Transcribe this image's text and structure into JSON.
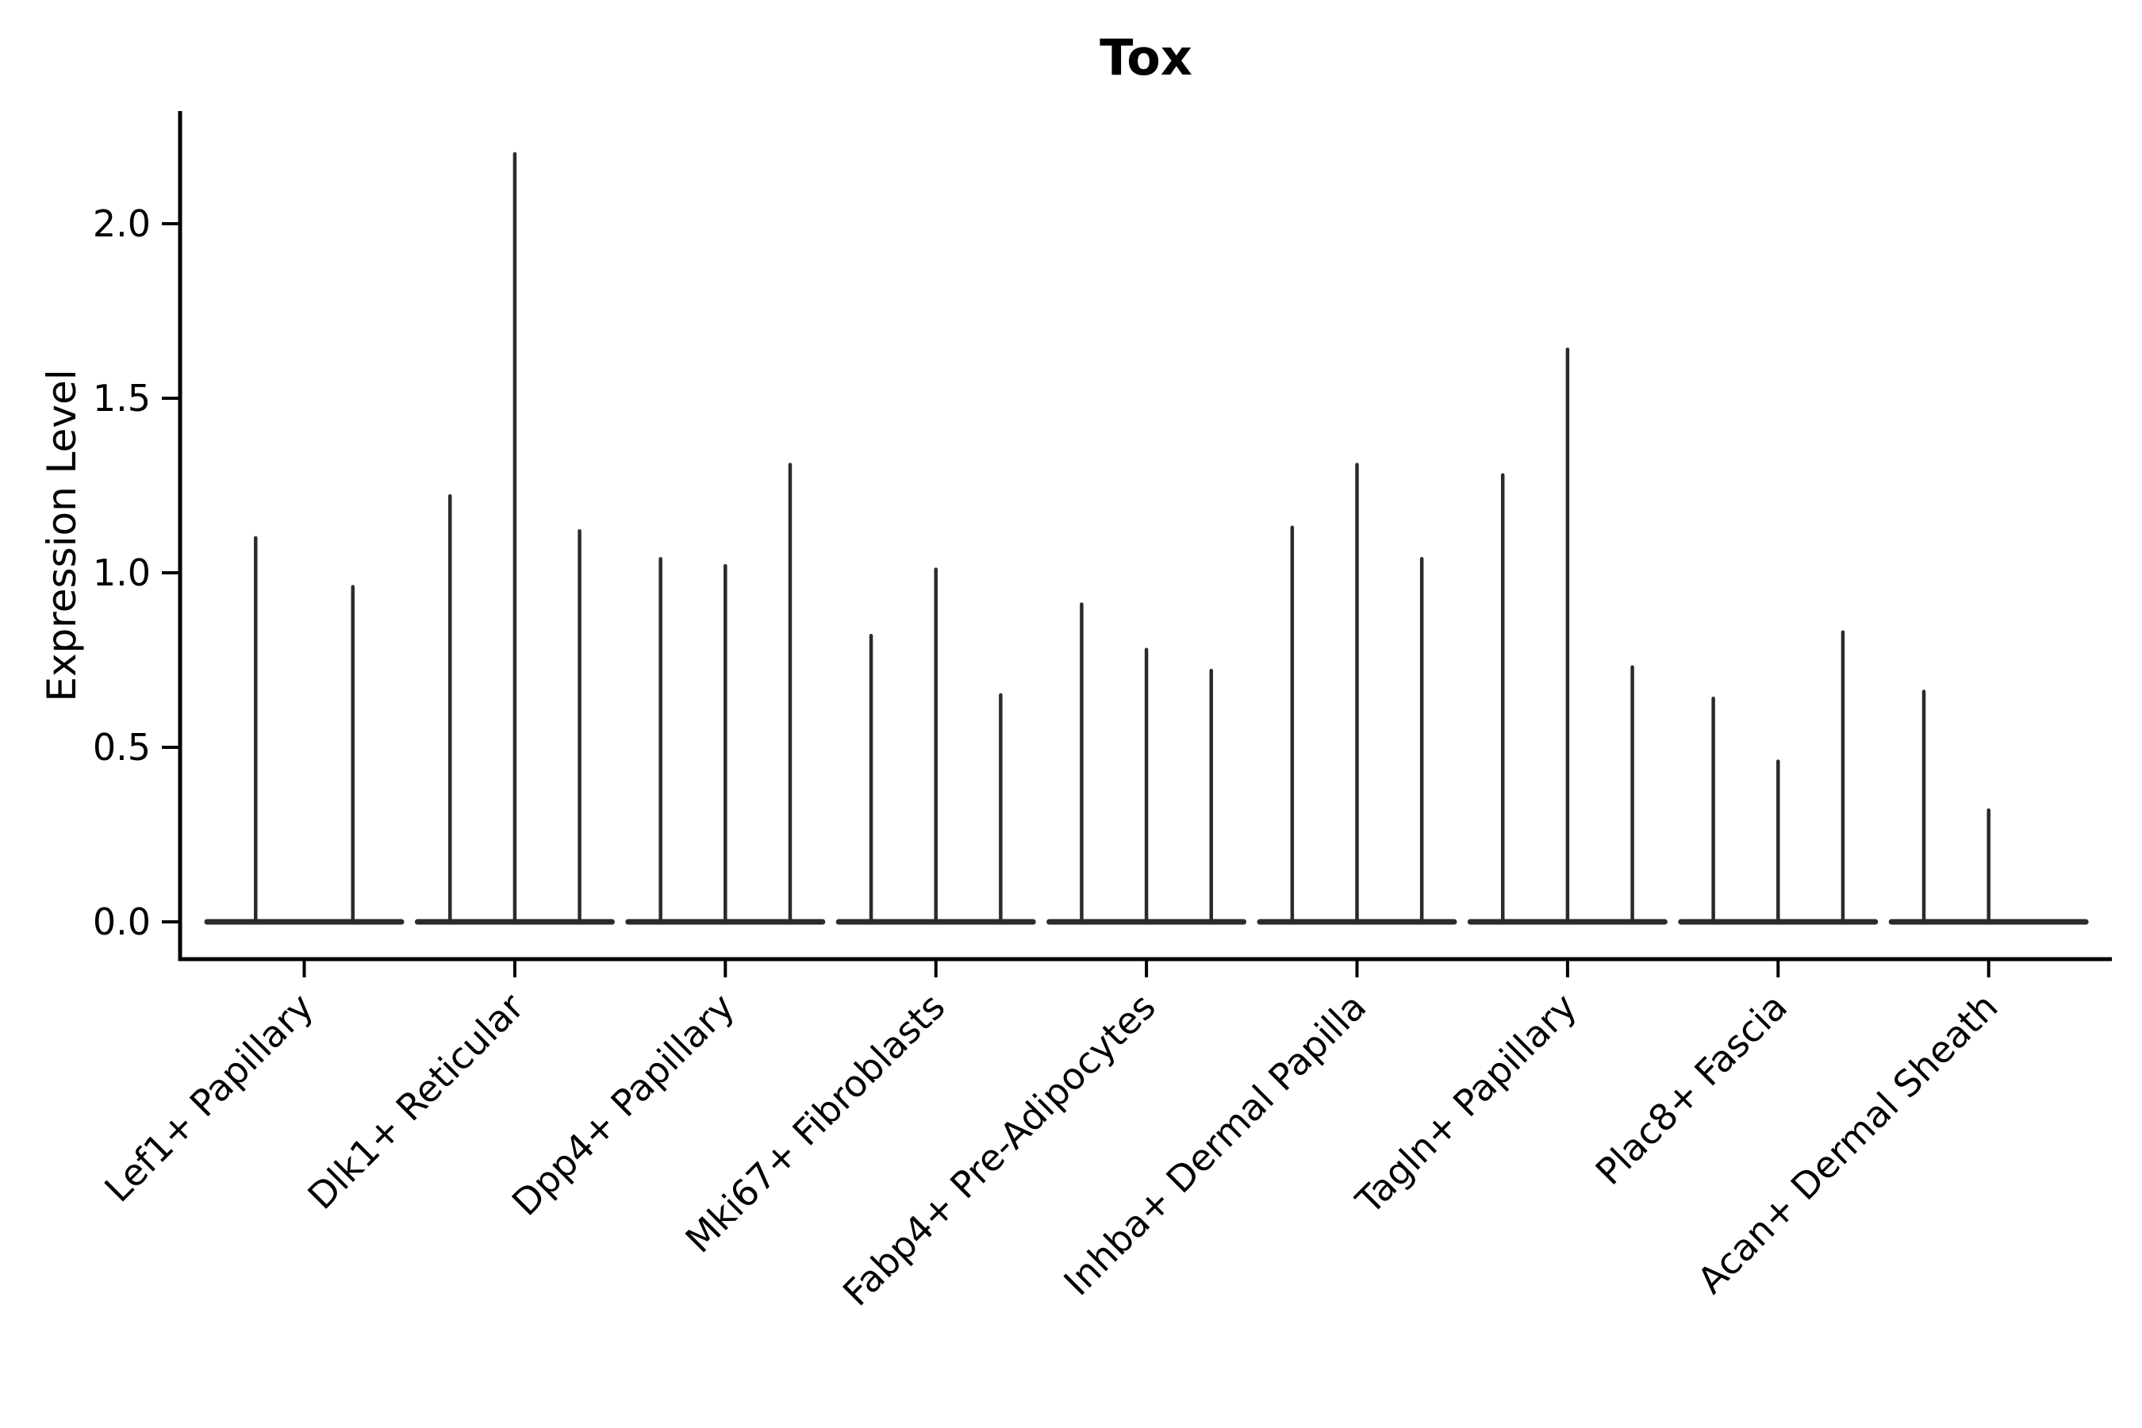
{
  "figure": {
    "title": "Tox",
    "ylabel": "Expression Level"
  },
  "chart_data": {
    "type": "violin",
    "title": "Tox",
    "xlabel": "",
    "ylabel": "Expression Level",
    "ylim": [
      -0.11,
      2.32
    ],
    "yticks": [
      "0.0",
      "0.5",
      "1.0",
      "1.5",
      "2.0"
    ],
    "ytick_values": [
      0.0,
      0.5,
      1.0,
      1.5,
      2.0
    ],
    "grid": false,
    "legend": "none",
    "description": "Violin plot of Tox expression; violins are collapsed to a flat baseline at 0 with one thin spike per violin reaching the maximum expression value. Some categories contain 2 violins, others 3; null means a flat violin with no spike.",
    "categories": [
      "Lef1+ Papillary",
      "Dlk1+ Reticular",
      "Dpp4+ Papillary",
      "Mki67+ Fibroblasts",
      "Fabp4+ Pre-Adipocytes",
      "Inhba+ Dermal Papilla",
      "Tagln+ Papillary",
      "Plac8+ Fascia",
      "Acan+ Dermal Sheath"
    ],
    "violins": [
      {
        "category": "Lef1+ Papillary",
        "spike_heights": [
          1.1,
          0.96
        ]
      },
      {
        "category": "Dlk1+ Reticular",
        "spike_heights": [
          1.22,
          2.2,
          1.12
        ]
      },
      {
        "category": "Dpp4+ Papillary",
        "spike_heights": [
          1.04,
          1.02,
          1.31
        ]
      },
      {
        "category": "Mki67+ Fibroblasts",
        "spike_heights": [
          0.82,
          1.01,
          0.65
        ]
      },
      {
        "category": "Fabp4+ Pre-Adipocytes",
        "spike_heights": [
          0.91,
          0.78,
          0.72
        ]
      },
      {
        "category": "Inhba+ Dermal Papilla",
        "spike_heights": [
          1.13,
          1.31,
          1.04
        ]
      },
      {
        "category": "Tagln+ Papillary",
        "spike_heights": [
          1.28,
          1.64,
          0.73
        ]
      },
      {
        "category": "Plac8+ Fascia",
        "spike_heights": [
          0.64,
          0.46,
          0.83
        ]
      },
      {
        "category": "Acan+ Dermal Sheath",
        "spike_heights": [
          0.66,
          0.32,
          null
        ]
      }
    ],
    "colors": {
      "violin": "#2b2b2b",
      "axis": "#000000",
      "text": "#000000",
      "background": "#ffffff"
    }
  }
}
